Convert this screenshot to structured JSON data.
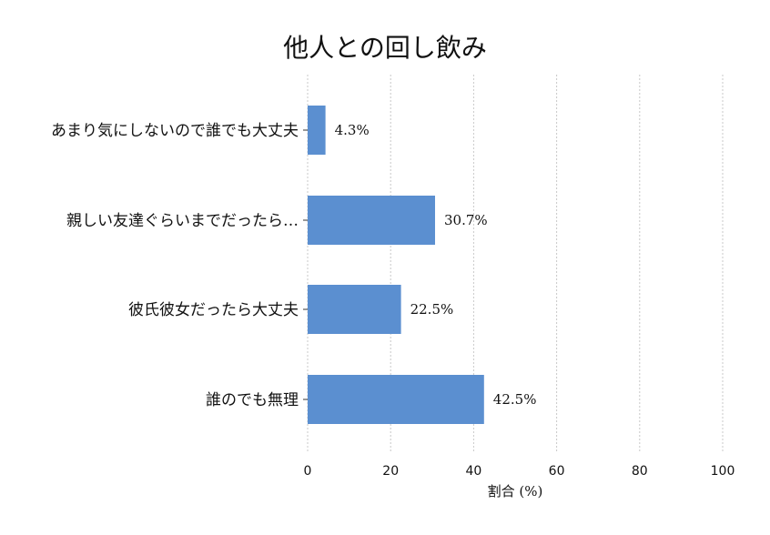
{
  "chart_data": {
    "type": "bar",
    "orientation": "horizontal",
    "title": "他人との回し飲み",
    "xlabel": "割合 (%)",
    "ylabel": "",
    "xlim": [
      0,
      100
    ],
    "xticks": [
      0,
      20,
      40,
      60,
      80,
      100
    ],
    "grid": "vertical-dashed",
    "categories": [
      "あまり気にしないので誰でも大丈夫",
      "親しい友達ぐらいまでだったら…",
      "彼氏彼女だったら大丈夫",
      "誰のでも無理"
    ],
    "values": [
      4.3,
      30.7,
      22.5,
      42.5
    ],
    "value_labels": [
      "4.3%",
      "30.7%",
      "22.5%",
      "42.5%"
    ],
    "colors": {
      "bar": "#5b8fd0",
      "grid": "#c8c8c8",
      "text": "#111111"
    }
  }
}
